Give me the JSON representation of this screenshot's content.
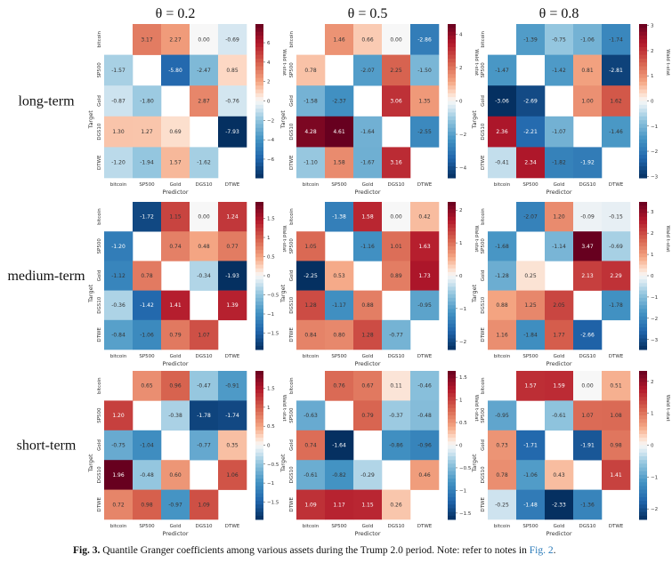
{
  "caption": {
    "label": "Fig. 3.",
    "text": " Quantile Granger coefficients among various assets during the Trump 2.0 period. Note: refer to notes in ",
    "link": "Fig. 2",
    "end": "."
  },
  "chart_data": {
    "type": "heatmap",
    "colormap": "RdBu_r (blue negative, white zero, red positive)",
    "columns": [
      "θ = 0.2",
      "θ = 0.5",
      "θ = 0.8"
    ],
    "rows": [
      "long-term",
      "medium-term",
      "short-term"
    ],
    "xlabel": "Predictor",
    "ylabel": "Target",
    "colorbar_label": "Wald t-stat",
    "categories": [
      "bitcoin",
      "SP500",
      "Gold",
      "DGS10",
      "DTWE"
    ],
    "panels": [
      {
        "row": "long-term",
        "theta": "θ = 0.2",
        "colorbar_range": [
          -7.93,
          7.93
        ],
        "colorbar_ticks": [
          -6,
          -4,
          -2,
          0,
          2,
          4,
          6
        ],
        "values": [
          [
            null,
            3.17,
            2.27,
            0.0,
            -0.69
          ],
          [
            -1.57,
            null,
            -5.8,
            -2.47,
            0.85
          ],
          [
            -0.87,
            -1.8,
            null,
            2.87,
            -0.76
          ],
          [
            1.3,
            1.27,
            0.69,
            null,
            -7.93
          ],
          [
            -1.2,
            -1.94,
            1.57,
            -1.62,
            null
          ]
        ]
      },
      {
        "row": "long-term",
        "theta": "θ = 0.5",
        "colorbar_range": [
          -4.61,
          4.61
        ],
        "colorbar_ticks": [
          -4,
          -2,
          0,
          2,
          4
        ],
        "values": [
          [
            null,
            1.46,
            0.66,
            0.0,
            -2.86
          ],
          [
            0.78,
            null,
            -2.07,
            2.25,
            -1.5
          ],
          [
            -1.58,
            -2.37,
            null,
            3.06,
            1.35
          ],
          [
            4.28,
            4.61,
            -1.64,
            null,
            -2.55
          ],
          [
            -1.1,
            1.58,
            -1.67,
            3.16,
            null
          ]
        ]
      },
      {
        "row": "long-term",
        "theta": "θ = 0.8",
        "colorbar_range": [
          -3.06,
          3.06
        ],
        "colorbar_ticks": [
          -3,
          -2,
          -1,
          0,
          1,
          2,
          3
        ],
        "values": [
          [
            null,
            -1.39,
            -0.75,
            -1.06,
            -1.74
          ],
          [
            -1.47,
            null,
            -1.42,
            0.81,
            -2.81
          ],
          [
            -3.06,
            -2.69,
            null,
            1.0,
            1.62
          ],
          [
            2.36,
            -2.21,
            -1.07,
            null,
            -1.46
          ],
          [
            -0.41,
            2.34,
            -1.82,
            -1.92,
            null
          ]
        ]
      },
      {
        "row": "medium-term",
        "theta": "θ = 0.2",
        "colorbar_range": [
          -1.93,
          1.93
        ],
        "colorbar_ticks": [
          -1.5,
          -1.0,
          -0.5,
          0.0,
          0.5,
          1.0,
          1.5
        ],
        "values": [
          [
            null,
            -1.72,
            1.15,
            0.0,
            1.24
          ],
          [
            -1.2,
            null,
            0.74,
            0.48,
            0.77
          ],
          [
            -1.12,
            0.78,
            null,
            -0.34,
            -1.93
          ],
          [
            -0.36,
            -1.42,
            1.41,
            null,
            1.39
          ],
          [
            -0.84,
            -1.06,
            0.79,
            1.07,
            null
          ]
        ]
      },
      {
        "row": "medium-term",
        "theta": "θ = 0.5",
        "colorbar_range": [
          -2.25,
          2.25
        ],
        "colorbar_ticks": [
          -2,
          -1,
          0,
          1,
          2
        ],
        "values": [
          [
            null,
            -1.38,
            1.58,
            0.0,
            0.42
          ],
          [
            1.05,
            null,
            -1.16,
            1.01,
            1.63
          ],
          [
            -2.25,
            0.53,
            null,
            0.89,
            1.73
          ],
          [
            1.28,
            -1.17,
            0.88,
            null,
            -0.95
          ],
          [
            0.84,
            0.8,
            1.28,
            -0.77,
            null
          ]
        ]
      },
      {
        "row": "medium-term",
        "theta": "θ = 0.8",
        "colorbar_range": [
          -3.47,
          3.47
        ],
        "colorbar_ticks": [
          -3,
          -2,
          -1,
          0,
          1,
          2,
          3
        ],
        "values": [
          [
            null,
            -2.07,
            1.2,
            -0.09,
            -0.15
          ],
          [
            -1.68,
            null,
            -1.14,
            3.47,
            -0.69
          ],
          [
            -1.28,
            0.25,
            null,
            2.13,
            2.29
          ],
          [
            0.88,
            1.25,
            2.05,
            null,
            -1.78
          ],
          [
            1.16,
            -1.84,
            1.77,
            -2.66,
            null
          ]
        ]
      },
      {
        "row": "short-term",
        "theta": "θ = 0.2",
        "colorbar_range": [
          -1.96,
          1.96
        ],
        "colorbar_ticks": [
          -1.5,
          -1.0,
          -0.5,
          0.0,
          0.5,
          1.0,
          1.5
        ],
        "values": [
          [
            null,
            0.65,
            0.96,
            -0.47,
            -0.91
          ],
          [
            1.2,
            null,
            -0.38,
            -1.78,
            -1.74
          ],
          [
            -0.75,
            -1.04,
            null,
            -0.77,
            0.35
          ],
          [
            1.96,
            -0.48,
            0.6,
            null,
            1.06
          ],
          [
            0.72,
            0.98,
            -0.97,
            1.09,
            null
          ]
        ]
      },
      {
        "row": "short-term",
        "theta": "θ = 0.5",
        "colorbar_range": [
          -1.64,
          1.64
        ],
        "colorbar_ticks": [
          -1.5,
          -1.0,
          -0.5,
          0.0,
          0.5,
          1.0,
          1.5
        ],
        "values": [
          [
            null,
            0.76,
            0.67,
            0.11,
            -0.46
          ],
          [
            -0.63,
            null,
            0.79,
            -0.37,
            -0.48
          ],
          [
            0.74,
            -1.64,
            null,
            -0.86,
            -0.96
          ],
          [
            -0.61,
            -0.82,
            -0.29,
            null,
            0.46
          ],
          [
            1.09,
            1.17,
            1.15,
            0.26,
            null
          ]
        ]
      },
      {
        "row": "short-term",
        "theta": "θ = 0.8",
        "colorbar_range": [
          -2.33,
          2.33
        ],
        "colorbar_ticks": [
          -2,
          -1,
          0,
          1,
          2
        ],
        "values": [
          [
            null,
            1.57,
            1.59,
            0.0,
            0.51
          ],
          [
            -0.95,
            null,
            -0.61,
            1.07,
            1.08
          ],
          [
            0.73,
            -1.71,
            null,
            -1.91,
            0.98
          ],
          [
            0.78,
            -1.06,
            0.43,
            null,
            1.41
          ],
          [
            -0.25,
            -1.48,
            -2.33,
            -1.36,
            null
          ]
        ]
      }
    ]
  }
}
